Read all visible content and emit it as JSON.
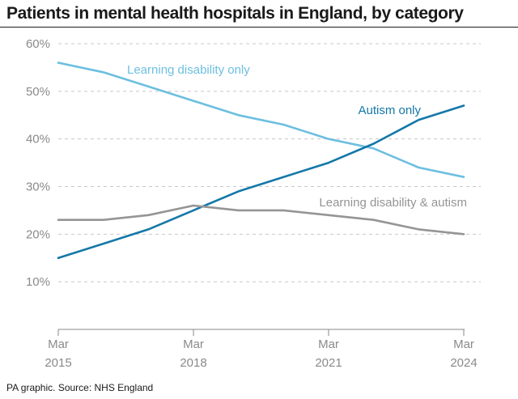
{
  "header": {
    "title": "Patients in mental health hospitals in England, by category"
  },
  "footer": {
    "source": "PA graphic. Source: NHS England"
  },
  "chart_data": {
    "type": "line",
    "title": "Patients in mental health hospitals in England, by category",
    "xlabel": "",
    "ylabel": "",
    "x": [
      2015,
      2016,
      2017,
      2018,
      2019,
      2020,
      2021,
      2022,
      2023,
      2024
    ],
    "xlim": [
      2015,
      2024
    ],
    "ylim": [
      0,
      60
    ],
    "y_ticks": [
      {
        "value": 10,
        "label": "10%"
      },
      {
        "value": 20,
        "label": "20%"
      },
      {
        "value": 30,
        "label": "30%"
      },
      {
        "value": 40,
        "label": "40%"
      },
      {
        "value": 50,
        "label": "50%"
      },
      {
        "value": 60,
        "label": "60%"
      }
    ],
    "x_ticks": [
      {
        "value": 2015,
        "line1": "Mar",
        "line2": "2015"
      },
      {
        "value": 2018,
        "line1": "Mar",
        "line2": "2018"
      },
      {
        "value": 2021,
        "line1": "Mar",
        "line2": "2021"
      },
      {
        "value": 2024,
        "line1": "Mar",
        "line2": "2024"
      }
    ],
    "grid": "horizontal-dashed",
    "colors": {
      "grid": "#c8c8c8",
      "axis": "#8a8a8a",
      "tick_text": "#8a8a8a"
    },
    "series": [
      {
        "name": "Learning disability only",
        "color": "#6cbfe0",
        "values": [
          56,
          54,
          51,
          48,
          45,
          43,
          40,
          38,
          34,
          32
        ]
      },
      {
        "name": "Autism only",
        "color": "#1478a8",
        "values": [
          15,
          18,
          21,
          25,
          29,
          32,
          35,
          39,
          44,
          47
        ]
      },
      {
        "name": "Learning disability & autism",
        "color": "#959595",
        "values": [
          23,
          23,
          24,
          26,
          25,
          25,
          24,
          23,
          21,
          20
        ]
      }
    ]
  }
}
